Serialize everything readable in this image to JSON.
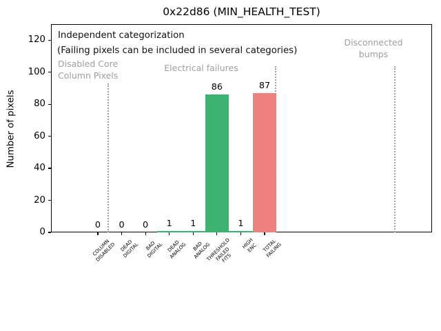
{
  "window": {
    "background": "#ffffff"
  },
  "chart_data": {
    "type": "bar",
    "title": "0x22d86 (MIN_HEALTH_TEST)",
    "xlabel": "",
    "ylabel": "Number of pixels",
    "categories": [
      "COLUMN\nDISABLED",
      "DEAD\nDIGITAL",
      "BAD\nDIGITAL",
      "DEAD\nANALOG",
      "BAD\nANALOG",
      "THRESHOLD\nFAILED\nFITS",
      "HIGH\nENC",
      "TOTAL\nFAILING"
    ],
    "values": [
      0,
      0,
      0,
      1,
      1,
      86,
      1,
      87
    ],
    "bar_value_labels": [
      "0",
      "0",
      "0",
      "1",
      "1",
      "86",
      "1",
      "87"
    ],
    "bar_colors": [
      "#3cb371",
      "#3cb371",
      "#3cb371",
      "#3cb371",
      "#3cb371",
      "#3cb371",
      "#3cb371",
      "#f08080"
    ],
    "green_color": "#3cb371",
    "red_color": "#f08080",
    "yticks": [
      0,
      20,
      40,
      60,
      80,
      100,
      120
    ],
    "ylim": [
      0,
      130
    ],
    "grid": false,
    "legend": "none",
    "tick_label_rotation_deg": 45,
    "annotations": [
      {
        "id": "independent-categorization",
        "text": "Independent categorization",
        "color": "#111111"
      },
      {
        "id": "categories-note",
        "text": "(Failing pixels can be included in several categories)",
        "color": "#111111"
      },
      {
        "id": "disabled-core-section",
        "text": "Disabled Core\nColumn Pixels",
        "color": "#9e9e9e"
      },
      {
        "id": "electrical-failures-section",
        "text": "Electrical failures",
        "color": "#9e9e9e"
      },
      {
        "id": "disconnected-bumps-section",
        "text": "Disconnected\nbumps",
        "color": "#9e9e9e"
      }
    ],
    "section_separators": {
      "style": "dotted",
      "color": "#9e9e9e",
      "count": 3
    }
  }
}
